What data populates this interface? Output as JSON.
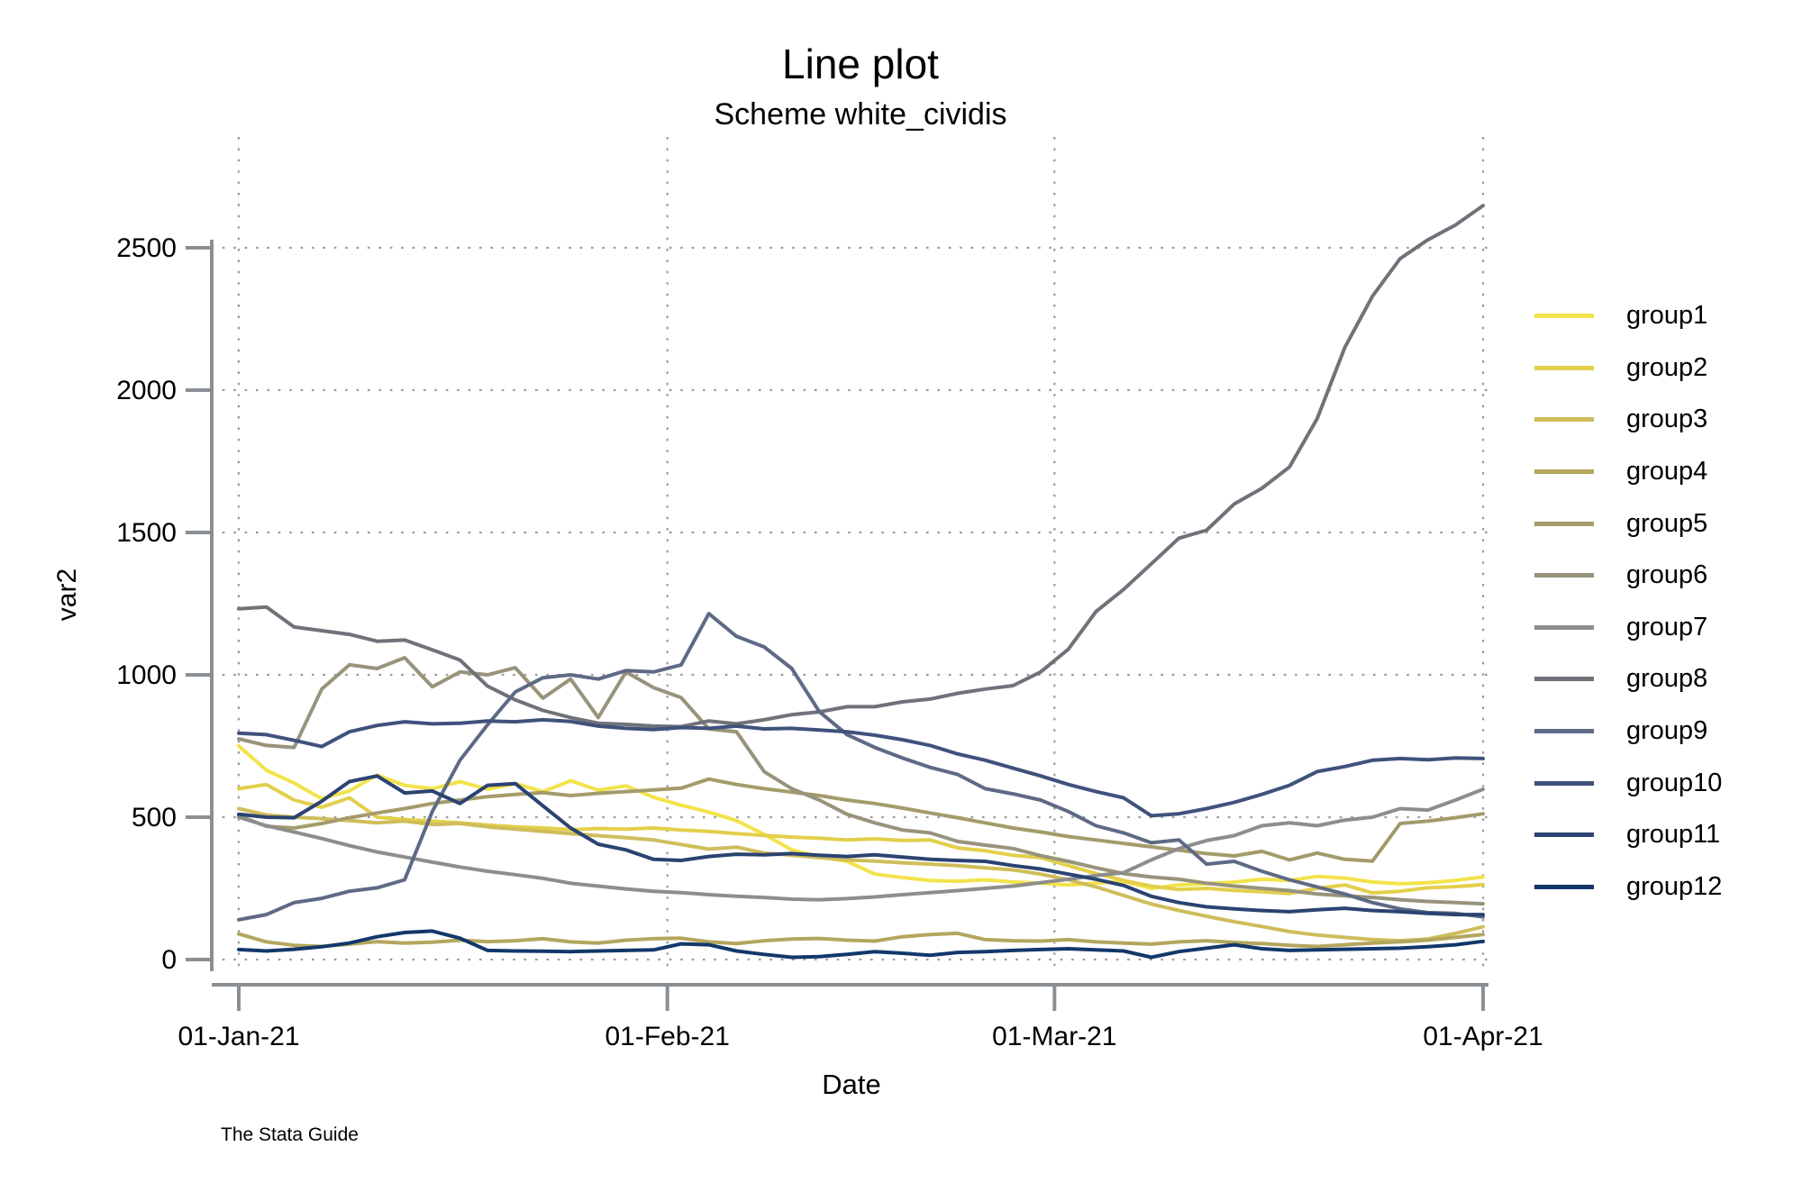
{
  "header": {
    "title": "Line plot",
    "subtitle": "Scheme white_cividis"
  },
  "credit": "The Stata Guide",
  "chart_data": {
    "type": "line",
    "title": "Line plot",
    "subtitle": "Scheme white_cividis",
    "xlabel": "Date",
    "ylabel": "var2",
    "ylim": [
      0,
      2500
    ],
    "y_ticks": [
      0,
      500,
      1000,
      1500,
      2000,
      2500
    ],
    "x_tick_labels": [
      "01-Jan-21",
      "01-Feb-21",
      "01-Mar-21",
      "01-Apr-21"
    ],
    "x_tick_days": [
      0,
      31,
      59,
      90
    ],
    "x_day_step": 2,
    "x_range_days": [
      0,
      90
    ],
    "grid": "dotted",
    "legend_position": "right",
    "axis_color": "#8a8f93",
    "grid_color": "#9b9b9b",
    "series": [
      {
        "name": "group1",
        "color": "#F2E34A",
        "values": [
          750,
          665,
          620,
          565,
          592,
          648,
          612,
          600,
          625,
          598,
          618,
          590,
          628,
          595,
          610,
          570,
          542,
          518,
          488,
          440,
          385,
          360,
          345,
          300,
          288,
          278,
          275,
          280,
          272,
          268,
          262,
          268,
          274,
          250,
          262,
          266,
          272,
          282,
          278,
          292,
          286,
          272,
          266,
          270,
          278,
          290
        ]
      },
      {
        "name": "group2",
        "color": "#E3CF4B",
        "values": [
          600,
          615,
          560,
          535,
          568,
          500,
          492,
          486,
          480,
          472,
          466,
          462,
          456,
          460,
          458,
          462,
          455,
          450,
          442,
          436,
          430,
          426,
          420,
          424,
          418,
          420,
          392,
          382,
          366,
          358,
          330,
          302,
          278,
          258,
          246,
          250,
          243,
          238,
          232,
          250,
          262,
          234,
          240,
          252,
          256,
          263
        ]
      },
      {
        "name": "group3",
        "color": "#CFBD5B",
        "values": [
          530,
          508,
          500,
          495,
          488,
          480,
          486,
          474,
          478,
          466,
          458,
          450,
          442,
          435,
          428,
          420,
          404,
          388,
          395,
          374,
          366,
          358,
          350,
          346,
          340,
          335,
          330,
          322,
          315,
          300,
          280,
          255,
          225,
          195,
          172,
          152,
          133,
          116,
          98,
          86,
          78,
          70,
          66,
          72,
          92,
          115
        ]
      },
      {
        "name": "group4",
        "color": "#B3A65D",
        "values": [
          90,
          62,
          50,
          46,
          54,
          63,
          58,
          61,
          68,
          63,
          66,
          73,
          62,
          58,
          68,
          73,
          75,
          62,
          56,
          66,
          72,
          74,
          68,
          65,
          80,
          88,
          92,
          70,
          66,
          65,
          70,
          62,
          58,
          54,
          62,
          66,
          60,
          56,
          50,
          46,
          52,
          58,
          62,
          68,
          78,
          88
        ]
      },
      {
        "name": "group5",
        "color": "#A49B6B",
        "values": [
          505,
          468,
          462,
          478,
          498,
          515,
          530,
          548,
          560,
          572,
          580,
          586,
          576,
          584,
          590,
          596,
          602,
          634,
          615,
          600,
          588,
          576,
          560,
          548,
          532,
          515,
          498,
          480,
          462,
          448,
          432,
          420,
          408,
          396,
          384,
          372,
          364,
          380,
          350,
          374,
          352,
          346,
          478,
          486,
          498,
          512
        ]
      },
      {
        "name": "group6",
        "color": "#98937B",
        "values": [
          775,
          752,
          745,
          950,
          1035,
          1022,
          1060,
          958,
          1010,
          1000,
          1025,
          918,
          985,
          850,
          1010,
          955,
          920,
          810,
          800,
          660,
          600,
          560,
          510,
          480,
          455,
          445,
          415,
          402,
          390,
          365,
          345,
          322,
          302,
          290,
          282,
          268,
          258,
          250,
          242,
          230,
          224,
          218,
          210,
          204,
          200,
          196
        ]
      },
      {
        "name": "group7",
        "color": "#8D8D8B",
        "values": [
          500,
          470,
          448,
          425,
          400,
          378,
          360,
          342,
          325,
          310,
          298,
          285,
          268,
          258,
          248,
          240,
          235,
          228,
          222,
          218,
          212,
          210,
          214,
          220,
          228,
          235,
          242,
          250,
          258,
          270,
          282,
          295,
          305,
          350,
          390,
          418,
          435,
          470,
          480,
          470,
          490,
          500,
          530,
          525,
          560,
          598
        ]
      },
      {
        "name": "group8",
        "color": "#6F7279",
        "values": [
          1232,
          1238,
          1168,
          1155,
          1142,
          1118,
          1122,
          1088,
          1052,
          960,
          912,
          875,
          850,
          830,
          826,
          820,
          818,
          838,
          828,
          842,
          860,
          870,
          888,
          888,
          905,
          915,
          935,
          950,
          962,
          1010,
          1090,
          1222,
          1300,
          1390,
          1480,
          1508,
          1600,
          1655,
          1730,
          1900,
          2150,
          2330,
          2462,
          2528,
          2580,
          2648
        ]
      },
      {
        "name": "group9",
        "color": "#5E6A85",
        "values": [
          140,
          158,
          200,
          215,
          240,
          252,
          280,
          520,
          700,
          825,
          940,
          990,
          1000,
          985,
          1015,
          1010,
          1035,
          1215,
          1135,
          1098,
          1022,
          870,
          790,
          745,
          708,
          675,
          650,
          600,
          582,
          560,
          520,
          470,
          445,
          410,
          420,
          335,
          345,
          310,
          280,
          255,
          230,
          200,
          178,
          165,
          162,
          150
        ]
      },
      {
        "name": "group10",
        "color": "#40517D",
        "values": [
          795,
          790,
          770,
          748,
          800,
          822,
          835,
          828,
          830,
          838,
          835,
          842,
          836,
          820,
          812,
          808,
          815,
          812,
          820,
          810,
          812,
          806,
          800,
          788,
          772,
          752,
          722,
          700,
          672,
          645,
          615,
          590,
          568,
          505,
          512,
          530,
          552,
          580,
          612,
          660,
          678,
          700,
          706,
          702,
          708,
          706
        ]
      },
      {
        "name": "group11",
        "color": "#2B4372",
        "values": [
          510,
          500,
          498,
          556,
          625,
          645,
          585,
          592,
          548,
          612,
          618,
          540,
          462,
          405,
          385,
          352,
          348,
          362,
          370,
          368,
          372,
          366,
          362,
          368,
          360,
          352,
          348,
          345,
          330,
          318,
          300,
          282,
          260,
          222,
          200,
          185,
          178,
          172,
          168,
          175,
          180,
          172,
          168,
          162,
          158,
          158
        ]
      },
      {
        "name": "group12",
        "color": "#12386B",
        "values": [
          35,
          30,
          36,
          45,
          58,
          80,
          95,
          100,
          75,
          32,
          30,
          29,
          28,
          30,
          32,
          34,
          55,
          52,
          30,
          18,
          8,
          10,
          18,
          28,
          22,
          15,
          25,
          28,
          32,
          35,
          38,
          34,
          30,
          8,
          28,
          40,
          52,
          38,
          32,
          34,
          36,
          38,
          40,
          45,
          52,
          64
        ]
      }
    ]
  }
}
